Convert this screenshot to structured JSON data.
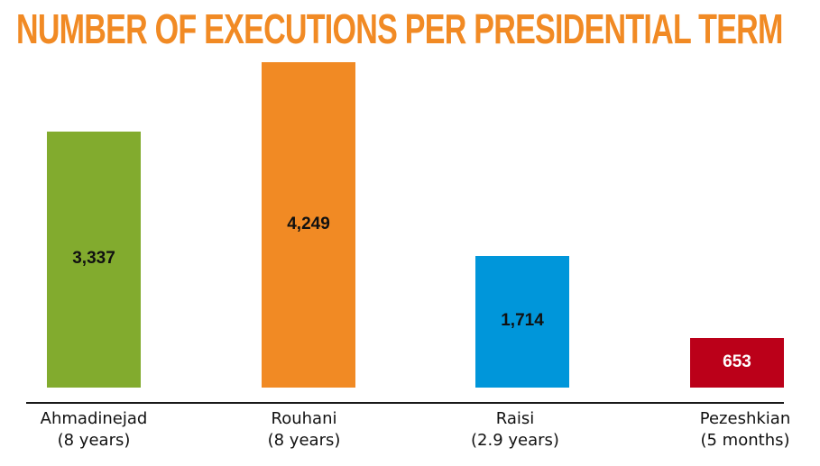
{
  "chart_data": {
    "type": "bar",
    "title": "NUMBER OF EXECUTIONS PER PRESIDENTIAL TERM",
    "xlabel": "",
    "ylabel": "",
    "ylim": [
      0,
      4249
    ],
    "grid": false,
    "categories": [
      "Ahmadinejad",
      "Rouhani",
      "Raisi",
      "Pezeshkian"
    ],
    "subcategories": [
      "(8 years)",
      "(8 years)",
      "(2.9 years)",
      "(5 months)"
    ],
    "values": [
      3337,
      4249,
      1714,
      653
    ],
    "data_labels": [
      "3,337",
      "4,249",
      "1,714",
      "653"
    ],
    "colors": [
      "#82ab2e",
      "#f18a24",
      "#0096da",
      "#bb0019"
    ],
    "label_colors": [
      "#111111",
      "#111111",
      "#111111",
      "#ffffff"
    ]
  }
}
